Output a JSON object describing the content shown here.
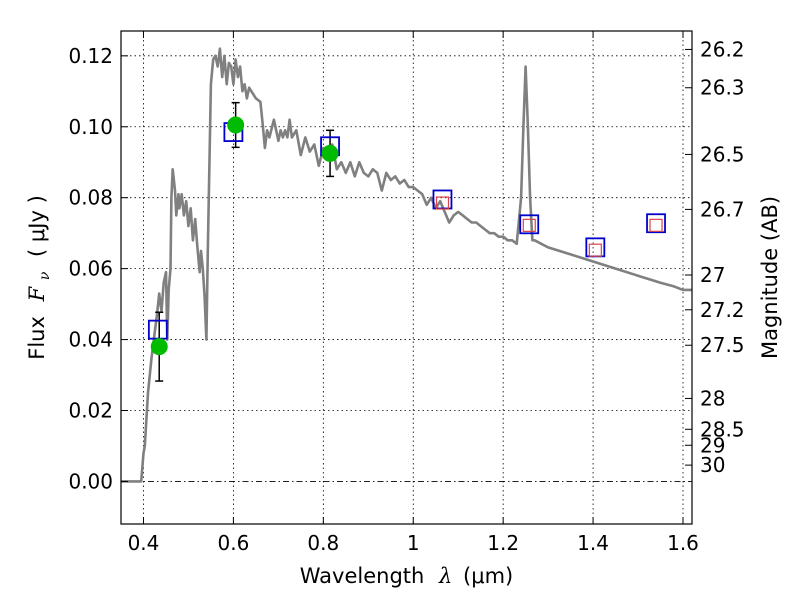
{
  "chart_data": {
    "type": "line",
    "xlabel": {
      "prefix": "Wavelength",
      "symbol": "λ",
      "unit": "(μm)"
    },
    "ylabel": {
      "prefix": "Flux",
      "symbol": "F",
      "subscript": "ν",
      "unit": "( μJy )"
    },
    "ylabel_right": "Magnitude (AB)",
    "xlim": [
      0.35,
      1.62
    ],
    "ylim": [
      -0.012,
      0.127
    ],
    "grid": true,
    "x_ticks": [
      {
        "value": 0.4,
        "label": "0.4"
      },
      {
        "value": 0.6,
        "label": "0.6"
      },
      {
        "value": 0.8,
        "label": "0.8"
      },
      {
        "value": 1.0,
        "label": "1"
      },
      {
        "value": 1.2,
        "label": "1.2"
      },
      {
        "value": 1.4,
        "label": "1.4"
      },
      {
        "value": 1.6,
        "label": "1.6"
      }
    ],
    "y_ticks": [
      {
        "value": 0.0,
        "label": "0.00"
      },
      {
        "value": 0.02,
        "label": "0.02"
      },
      {
        "value": 0.04,
        "label": "0.04"
      },
      {
        "value": 0.06,
        "label": "0.06"
      },
      {
        "value": 0.08,
        "label": "0.08"
      },
      {
        "value": 0.1,
        "label": "0.10"
      },
      {
        "value": 0.12,
        "label": "0.12"
      }
    ],
    "right_ticks": [
      {
        "flux": 0.1218,
        "label": "26.2"
      },
      {
        "flux": 0.111,
        "label": "26.3"
      },
      {
        "flux": 0.0922,
        "label": "26.5"
      },
      {
        "flux": 0.0767,
        "label": "26.7"
      },
      {
        "flux": 0.0582,
        "label": "27"
      },
      {
        "flux": 0.0484,
        "label": "27.2"
      },
      {
        "flux": 0.0384,
        "label": "27.5"
      },
      {
        "flux": 0.0234,
        "label": "28"
      },
      {
        "flux": 0.0147,
        "label": "28.5"
      },
      {
        "flux": 0.0102,
        "label": "29"
      },
      {
        "flux": 0.0046,
        "label": "30"
      }
    ],
    "series": [
      {
        "style": "line",
        "color": "#808080",
        "x": [
          0.35,
          0.395,
          0.4,
          0.403,
          0.41,
          0.418,
          0.425,
          0.43,
          0.435,
          0.44,
          0.445,
          0.45,
          0.453,
          0.456,
          0.46,
          0.462,
          0.465,
          0.47,
          0.473,
          0.478,
          0.48,
          0.485,
          0.49,
          0.495,
          0.5,
          0.505,
          0.51,
          0.515,
          0.52,
          0.525,
          0.528,
          0.532,
          0.536,
          0.54,
          0.543,
          0.55,
          0.555,
          0.56,
          0.565,
          0.57,
          0.575,
          0.58,
          0.585,
          0.59,
          0.595,
          0.6,
          0.605,
          0.61,
          0.615,
          0.62,
          0.625,
          0.63,
          0.635,
          0.64,
          0.65,
          0.66,
          0.665,
          0.67,
          0.675,
          0.68,
          0.69,
          0.7,
          0.705,
          0.71,
          0.715,
          0.72,
          0.725,
          0.73,
          0.74,
          0.75,
          0.76,
          0.77,
          0.78,
          0.79,
          0.8,
          0.81,
          0.82,
          0.83,
          0.84,
          0.85,
          0.86,
          0.87,
          0.88,
          0.89,
          0.9,
          0.91,
          0.92,
          0.93,
          0.94,
          0.95,
          0.96,
          0.97,
          0.98,
          0.99,
          1.0,
          1.01,
          1.02,
          1.03,
          1.04,
          1.05,
          1.06,
          1.07,
          1.08,
          1.09,
          1.1,
          1.11,
          1.12,
          1.13,
          1.14,
          1.15,
          1.16,
          1.17,
          1.18,
          1.19,
          1.2,
          1.21,
          1.22,
          1.23,
          1.24,
          1.245,
          1.25,
          1.255,
          1.26,
          1.265,
          1.27,
          1.3,
          1.35,
          1.4,
          1.45,
          1.5,
          1.55,
          1.58,
          1.6,
          1.62
        ],
        "y": [
          0.0,
          0.0,
          0.008,
          0.01,
          0.025,
          0.035,
          0.042,
          0.047,
          0.053,
          0.048,
          0.056,
          0.059,
          0.04,
          0.054,
          0.06,
          0.08,
          0.088,
          0.082,
          0.075,
          0.081,
          0.077,
          0.081,
          0.075,
          0.079,
          0.072,
          0.077,
          0.068,
          0.074,
          0.066,
          0.059,
          0.065,
          0.06,
          0.052,
          0.04,
          0.065,
          0.112,
          0.119,
          0.12,
          0.117,
          0.122,
          0.114,
          0.12,
          0.112,
          0.118,
          0.117,
          0.112,
          0.119,
          0.114,
          0.117,
          0.11,
          0.112,
          0.108,
          0.111,
          0.11,
          0.108,
          0.107,
          0.101,
          0.094,
          0.099,
          0.097,
          0.102,
          0.096,
          0.099,
          0.097,
          0.099,
          0.097,
          0.102,
          0.097,
          0.099,
          0.092,
          0.097,
          0.093,
          0.095,
          0.089,
          0.094,
          0.091,
          0.095,
          0.088,
          0.09,
          0.087,
          0.09,
          0.086,
          0.09,
          0.087,
          0.086,
          0.088,
          0.087,
          0.082,
          0.087,
          0.085,
          0.086,
          0.084,
          0.085,
          0.083,
          0.083,
          0.082,
          0.081,
          0.078,
          0.08,
          0.077,
          0.079,
          0.076,
          0.073,
          0.075,
          0.076,
          0.075,
          0.074,
          0.073,
          0.073,
          0.072,
          0.071,
          0.07,
          0.07,
          0.069,
          0.069,
          0.068,
          0.068,
          0.067,
          0.08,
          0.1,
          0.117,
          0.1,
          0.08,
          0.068,
          0.068,
          0.066,
          0.064,
          0.062,
          0.06,
          0.058,
          0.056,
          0.055,
          0.054,
          0.054
        ]
      },
      {
        "style": "points",
        "marker": "circle",
        "color": "#00bb00",
        "x": [
          0.435,
          0.605,
          0.815
        ],
        "y": [
          0.038,
          0.1005,
          0.0925
        ],
        "yerr": [
          0.0097,
          0.0063,
          0.0065
        ]
      },
      {
        "style": "points",
        "marker": "open-square",
        "color": "#0000cc",
        "x": [
          0.432,
          0.6,
          0.815,
          1.065,
          1.258,
          1.405,
          1.54
        ],
        "y": [
          0.0428,
          0.0985,
          0.0945,
          0.0795,
          0.0725,
          0.066,
          0.0728
        ]
      },
      {
        "style": "points",
        "marker": "open-square",
        "color": "#dd4444",
        "x": [
          1.065,
          1.258,
          1.405,
          1.54
        ],
        "y": [
          0.0785,
          0.0722,
          0.0652,
          0.0722
        ]
      }
    ]
  }
}
